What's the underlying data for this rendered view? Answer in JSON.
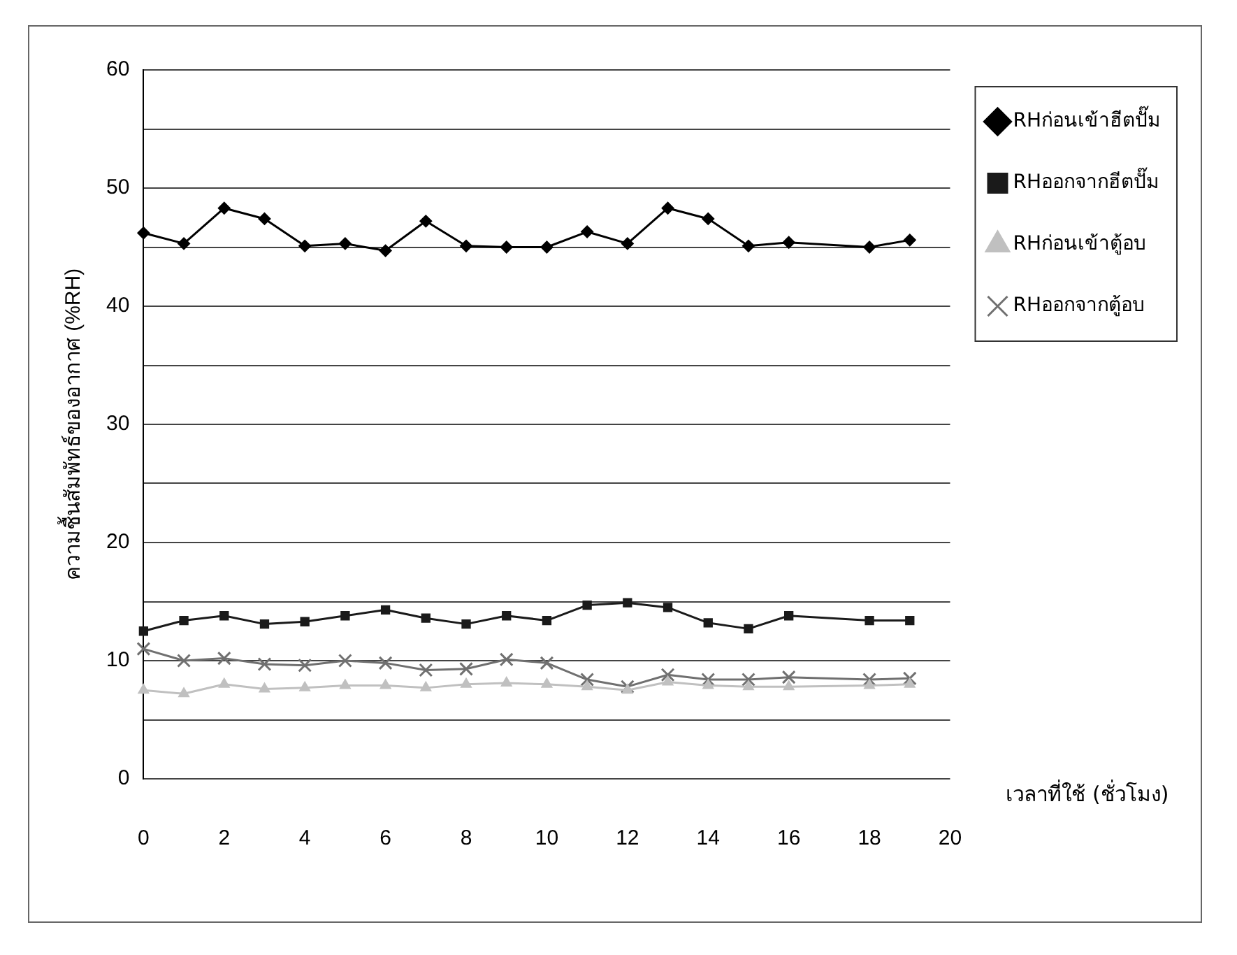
{
  "chart_data": {
    "type": "line",
    "xlabel": "เวลาที่ใช้ (ชั่วโมง)",
    "ylabel": "ความชื้นสัมพัทธ์ของอากาศ (%RH)",
    "x": [
      0,
      1,
      2,
      3,
      4,
      5,
      6,
      7,
      8,
      9,
      10,
      11,
      12,
      13,
      14,
      15,
      16,
      18,
      19
    ],
    "series": [
      {
        "name": "RHก่อนเข้าฮีตปั๊ม",
        "color": "#000000",
        "marker": "diamond",
        "values": [
          46.2,
          45.3,
          48.3,
          47.4,
          45.1,
          45.3,
          44.7,
          47.2,
          45.1,
          45,
          45,
          46.3,
          45.3,
          48.3,
          47.4,
          45.1,
          45.4,
          45,
          45.6
        ]
      },
      {
        "name": "RHออกจากฮีตปั๊ม",
        "color": "#1a1a1a",
        "marker": "square",
        "values": [
          12.5,
          13.4,
          13.8,
          13.1,
          13.3,
          13.8,
          14.3,
          13.6,
          13.1,
          13.8,
          13.4,
          14.7,
          14.9,
          14.5,
          13.2,
          12.7,
          13.8,
          13.4,
          13.4
        ]
      },
      {
        "name": "RHก่อนเข้าตู้อบ",
        "color": "#c0c0c0",
        "marker": "triangle",
        "values": [
          7.5,
          7.2,
          8,
          7.6,
          7.7,
          7.9,
          7.9,
          7.7,
          8,
          8.1,
          8,
          7.8,
          7.5,
          8.2,
          7.9,
          7.8,
          7.8,
          7.9,
          8
        ]
      },
      {
        "name": "RHออกจากตู้อบ",
        "color": "#707070",
        "marker": "cross",
        "values": [
          11,
          10,
          10.2,
          9.7,
          9.6,
          10,
          9.8,
          9.2,
          9.3,
          10.1,
          9.8,
          8.4,
          7.8,
          8.8,
          8.4,
          8.4,
          8.6,
          8.4,
          8.5
        ]
      }
    ],
    "xlim": [
      0,
      20
    ],
    "xticks": [
      0,
      2,
      4,
      6,
      8,
      10,
      12,
      14,
      16,
      18,
      20
    ],
    "ylim": [
      0,
      60
    ],
    "yticks": [
      0,
      {
        "value": 5,
        "label": null
      },
      10,
      {
        "value": 15,
        "label": null
      },
      20,
      {
        "value": 25,
        "label": null
      },
      30,
      {
        "value": 35,
        "label": null
      },
      40,
      {
        "value": 45,
        "label": null
      },
      50,
      {
        "value": 55,
        "label": null
      },
      60
    ],
    "grid": "y",
    "legend": "right",
    "line_style": "solid"
  }
}
